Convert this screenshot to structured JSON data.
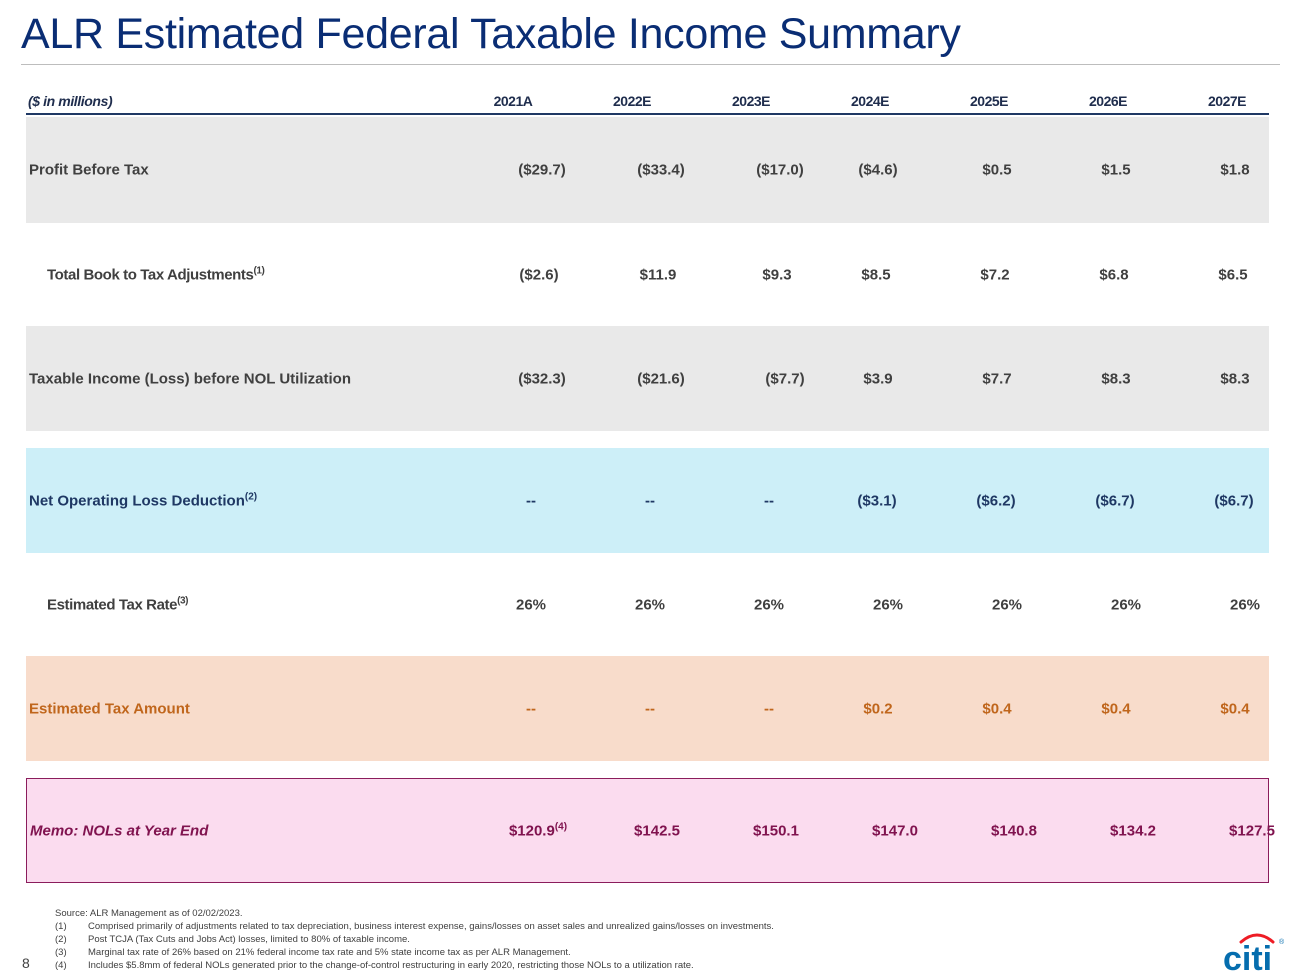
{
  "title": "ALR Estimated Federal Taxable Income Summary",
  "header": {
    "unit": "($ in millions)",
    "years": [
      "2021A",
      "2022E",
      "2023E",
      "2024E",
      "2025E",
      "2026E",
      "2027E"
    ]
  },
  "rows": [
    {
      "label": "Profit Before Tax",
      "sup": "",
      "values": [
        "($29.7)",
        "($33.4)",
        "($17.0)",
        "($4.6)",
        "$0.5",
        "$1.5",
        "$1.8"
      ]
    },
    {
      "label": "Total Book to Tax Adjustments",
      "sup": "(1)",
      "values": [
        "($2.6)",
        "$11.9",
        "$9.3",
        "$8.5",
        "$7.2",
        "$6.8",
        "$6.5"
      ]
    },
    {
      "label": "Taxable Income (Loss) before NOL Utilization",
      "sup": "",
      "values": [
        "($32.3)",
        "($21.6)",
        "($7.7)",
        "$3.9",
        "$7.7",
        "$8.3",
        "$8.3"
      ]
    },
    {
      "label": "Net Operating Loss Deduction",
      "sup": "(2)",
      "values": [
        "--",
        "--",
        "--",
        "($3.1)",
        "($6.2)",
        "($6.7)",
        "($6.7)"
      ]
    },
    {
      "label": "Estimated Tax Rate",
      "sup": "(3)",
      "values": [
        "26%",
        "26%",
        "26%",
        "26%",
        "26%",
        "26%",
        "26%"
      ]
    },
    {
      "label": "Estimated Tax Amount",
      "sup": "",
      "values": [
        "--",
        "--",
        "--",
        "$0.2",
        "$0.4",
        "$0.4",
        "$0.4"
      ]
    },
    {
      "label": "Memo: NOLs at Year End",
      "sup": "",
      "values": [
        "$120.9",
        "$142.5",
        "$150.1",
        "$147.0",
        "$140.8",
        "$134.2",
        "$127.5"
      ],
      "first_value_sup": "(4)"
    }
  ],
  "footnotes": {
    "source": "Source: ALR Management as of 02/02/2023.",
    "notes": [
      {
        "num": "(1)",
        "text": "Comprised primarily of adjustments related to tax depreciation, business interest expense, gains/losses on asset sales and unrealized gains/losses on investments."
      },
      {
        "num": "(2)",
        "text": "Post TCJA (Tax Cuts and Jobs Act) losses, limited to 80% of taxable income."
      },
      {
        "num": "(3)",
        "text": "Marginal tax rate of 26% based on 21% federal income tax rate and 5% state income tax as per ALR Management."
      },
      {
        "num": "(4)",
        "text": "Includes $5.8mm of federal NOLs generated prior to the change-of-control restructuring in early 2020, restricting those NOLs to a utilization rate."
      }
    ]
  },
  "page_number": "8",
  "logo_text": "citi",
  "colors": {
    "title": "#0a2d74",
    "citi_blue": "#056dae",
    "citi_red": "#ee1c25"
  }
}
